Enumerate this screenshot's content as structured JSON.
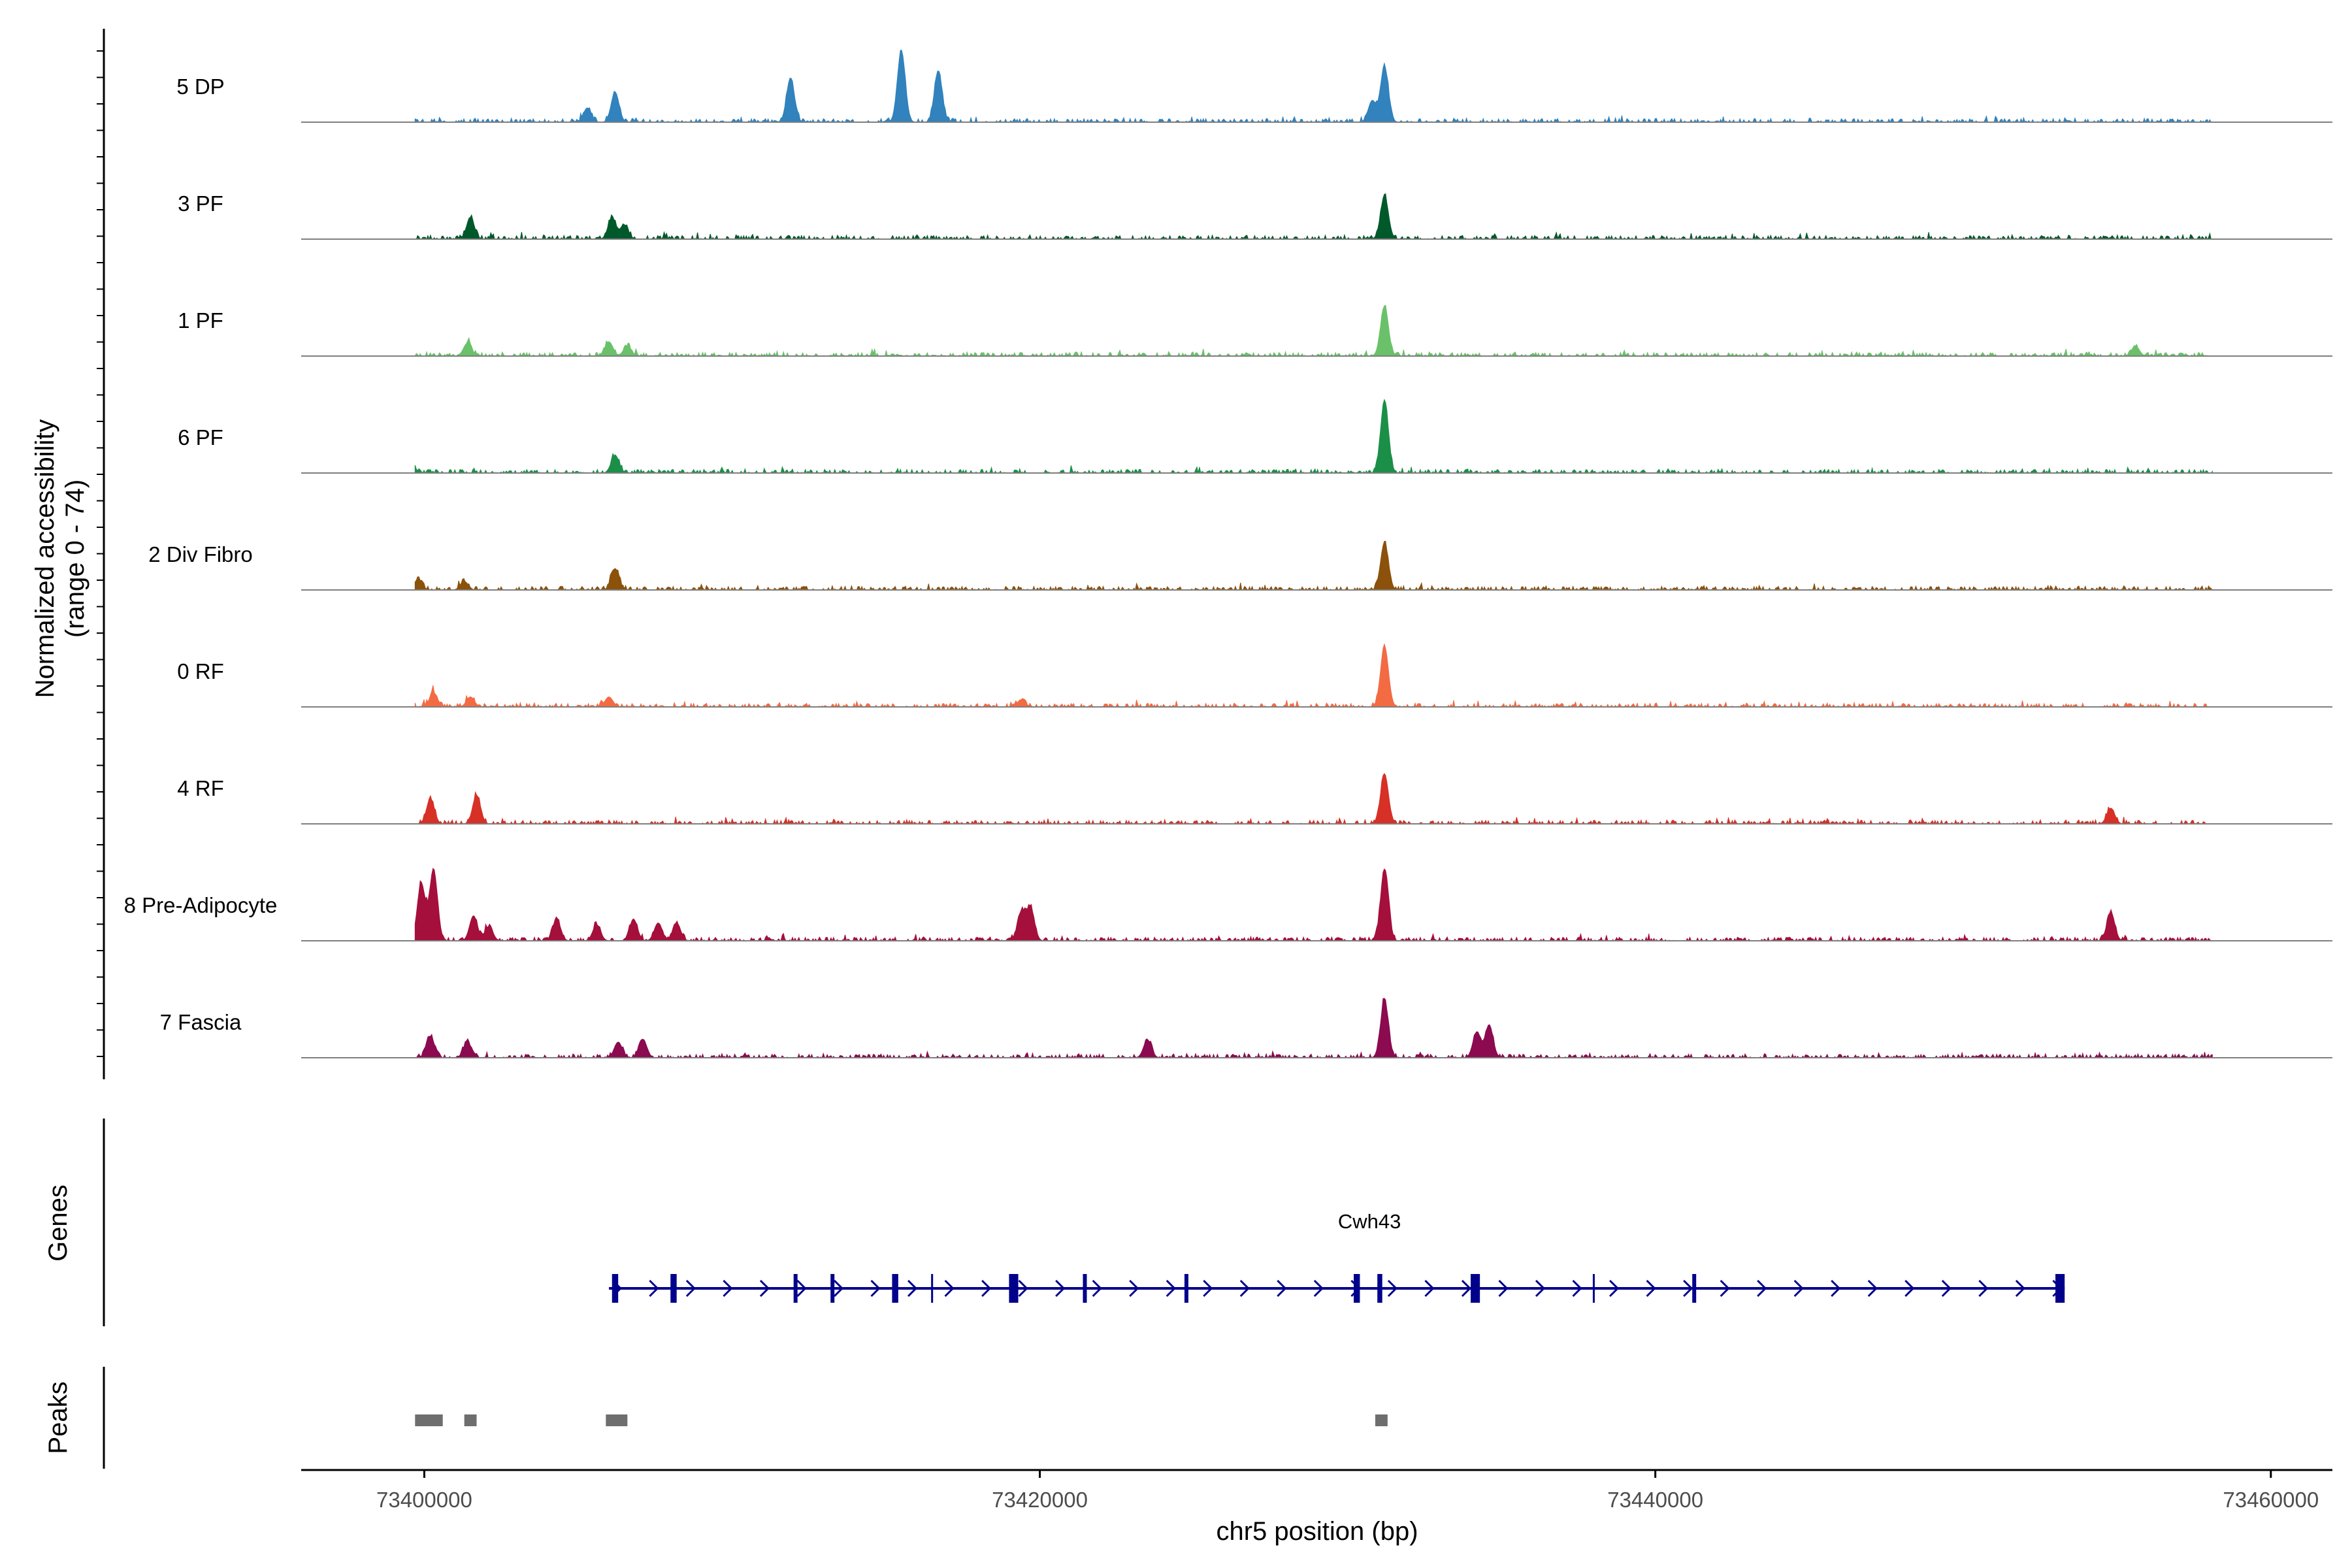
{
  "chart_data": {
    "type": "area",
    "region": "chr5",
    "xlabel": "chr5 position (bp)",
    "ylabel": "Normalized accessibility",
    "ylabel_range": "(range 0 - 74)",
    "xlim": [
      73396000,
      73462000
    ],
    "x_ticks": [
      73400000,
      73420000,
      73440000,
      73460000
    ],
    "x_tick_labels": [
      "73400000",
      "73420000",
      "73440000",
      "73460000"
    ],
    "tracks": [
      {
        "name": "5 DP",
        "color": "#3182bd",
        "peaks": [
          [
            73405300,
            0.2
          ],
          [
            73406200,
            0.42
          ],
          [
            73411900,
            0.62
          ],
          [
            73415500,
            1.0
          ],
          [
            73416700,
            0.72
          ],
          [
            73430800,
            0.3
          ],
          [
            73431200,
            0.78
          ]
        ]
      },
      {
        "name": "3 PF",
        "color": "#00592a",
        "peaks": [
          [
            73401500,
            0.3
          ],
          [
            73406100,
            0.3
          ],
          [
            73406500,
            0.2
          ],
          [
            73431200,
            0.6
          ]
        ]
      },
      {
        "name": "1 PF",
        "color": "#6ac16a",
        "peaks": [
          [
            73401400,
            0.18
          ],
          [
            73406000,
            0.2
          ],
          [
            73406600,
            0.14
          ],
          [
            73431200,
            0.7
          ],
          [
            73455600,
            0.14
          ]
        ]
      },
      {
        "name": "6 PF",
        "color": "#1b8f48",
        "peaks": [
          [
            73399600,
            0.1
          ],
          [
            73406200,
            0.25
          ],
          [
            73431200,
            1.0
          ]
        ]
      },
      {
        "name": "2 Div Fibro",
        "color": "#8c510a",
        "peaks": [
          [
            73399800,
            0.15
          ],
          [
            73401300,
            0.12
          ],
          [
            73406200,
            0.3
          ],
          [
            73431200,
            0.66
          ]
        ]
      },
      {
        "name": "0 RF",
        "color": "#f26b43",
        "peaks": [
          [
            73400300,
            0.2
          ],
          [
            73401500,
            0.14
          ],
          [
            73406000,
            0.14
          ],
          [
            73419400,
            0.1
          ],
          [
            73431200,
            0.85
          ]
        ]
      },
      {
        "name": "4 RF",
        "color": "#d73027",
        "peaks": [
          [
            73400200,
            0.35
          ],
          [
            73401700,
            0.4
          ],
          [
            73431200,
            0.7
          ],
          [
            73454800,
            0.22
          ]
        ]
      },
      {
        "name": "8 Pre-Adipocyte",
        "color": "#a50f3c",
        "peaks": [
          [
            73399900,
            0.8
          ],
          [
            73400300,
            1.0
          ],
          [
            73401600,
            0.35
          ],
          [
            73402100,
            0.2
          ],
          [
            73404300,
            0.3
          ],
          [
            73405600,
            0.22
          ],
          [
            73406800,
            0.3
          ],
          [
            73407600,
            0.25
          ],
          [
            73408200,
            0.25
          ],
          [
            73419400,
            0.4
          ],
          [
            73419700,
            0.45
          ],
          [
            73431200,
            1.0
          ],
          [
            73454800,
            0.4
          ]
        ]
      },
      {
        "name": "7 Fascia",
        "color": "#8b0a50",
        "peaks": [
          [
            73400200,
            0.3
          ],
          [
            73401400,
            0.22
          ],
          [
            73406300,
            0.22
          ],
          [
            73407100,
            0.26
          ],
          [
            73423500,
            0.25
          ],
          [
            73431200,
            0.8
          ],
          [
            73434200,
            0.36
          ],
          [
            73434600,
            0.46
          ]
        ]
      }
    ],
    "genes_label": "Genes",
    "gene": {
      "name": "Cwh43",
      "color": "#00008b",
      "start": 73406000,
      "end": 73453300,
      "strand": "+",
      "exons": [
        [
          73406100,
          73406300
        ],
        [
          73408000,
          73408200
        ],
        [
          73412000,
          73412100
        ],
        [
          73413200,
          73413300
        ],
        [
          73415200,
          73415400
        ],
        [
          73419000,
          73419300
        ],
        [
          73421400,
          73421500
        ],
        [
          73424700,
          73424800
        ],
        [
          73430200,
          73430400
        ],
        [
          73431000,
          73431100
        ],
        [
          73434000,
          73434300
        ],
        [
          73441200,
          73441300
        ],
        [
          73453000,
          73453300
        ]
      ],
      "introns_marks": [
        73416500,
        73431000,
        73438000
      ]
    },
    "peaks_label": "Peaks",
    "peak_regions": [
      [
        73399700,
        73400600
      ],
      [
        73401300,
        73401700
      ],
      [
        73405900,
        73406600
      ],
      [
        73430900,
        73431300
      ]
    ]
  }
}
